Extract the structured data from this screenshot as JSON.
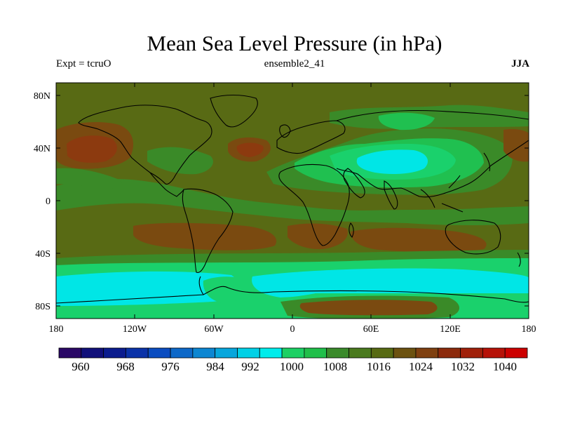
{
  "title": "Mean Sea Level Pressure (in hPa)",
  "left_label": "Expt = tcruO",
  "center_label": "ensemble2_41",
  "right_label": "JJA",
  "lat_ticks": [
    "80N",
    "40N",
    "0",
    "40S",
    "80S"
  ],
  "lon_ticks": [
    "180",
    "120W",
    "60W",
    "0",
    "60E",
    "120E",
    "180"
  ],
  "colorbar": {
    "labels": [
      "960",
      "968",
      "976",
      "984",
      "992",
      "1000",
      "1008",
      "1016",
      "1024",
      "1032",
      "1040"
    ],
    "colors": [
      "#2a0866",
      "#11107a",
      "#0b1c8e",
      "#0a32a8",
      "#0a4cc0",
      "#0d68c8",
      "#0c86d2",
      "#07a6dc",
      "#00d0e6",
      "#00eceb",
      "#1cd064",
      "#20bf4a",
      "#3a8a2a",
      "#4a7a1e",
      "#576a13",
      "#6c5210",
      "#7f4010",
      "#8c2a0c",
      "#a0200a",
      "#b61208",
      "#cc0000"
    ]
  },
  "map_colors": {
    "c1000": "#00e6e6",
    "c1008": "#1ad16c",
    "c1012": "#20c050",
    "c1016": "#3a8a28",
    "c1020": "#586a14",
    "c1024": "#7a4a10",
    "c1028": "#8c3a0f",
    "coast": "#000000"
  }
}
